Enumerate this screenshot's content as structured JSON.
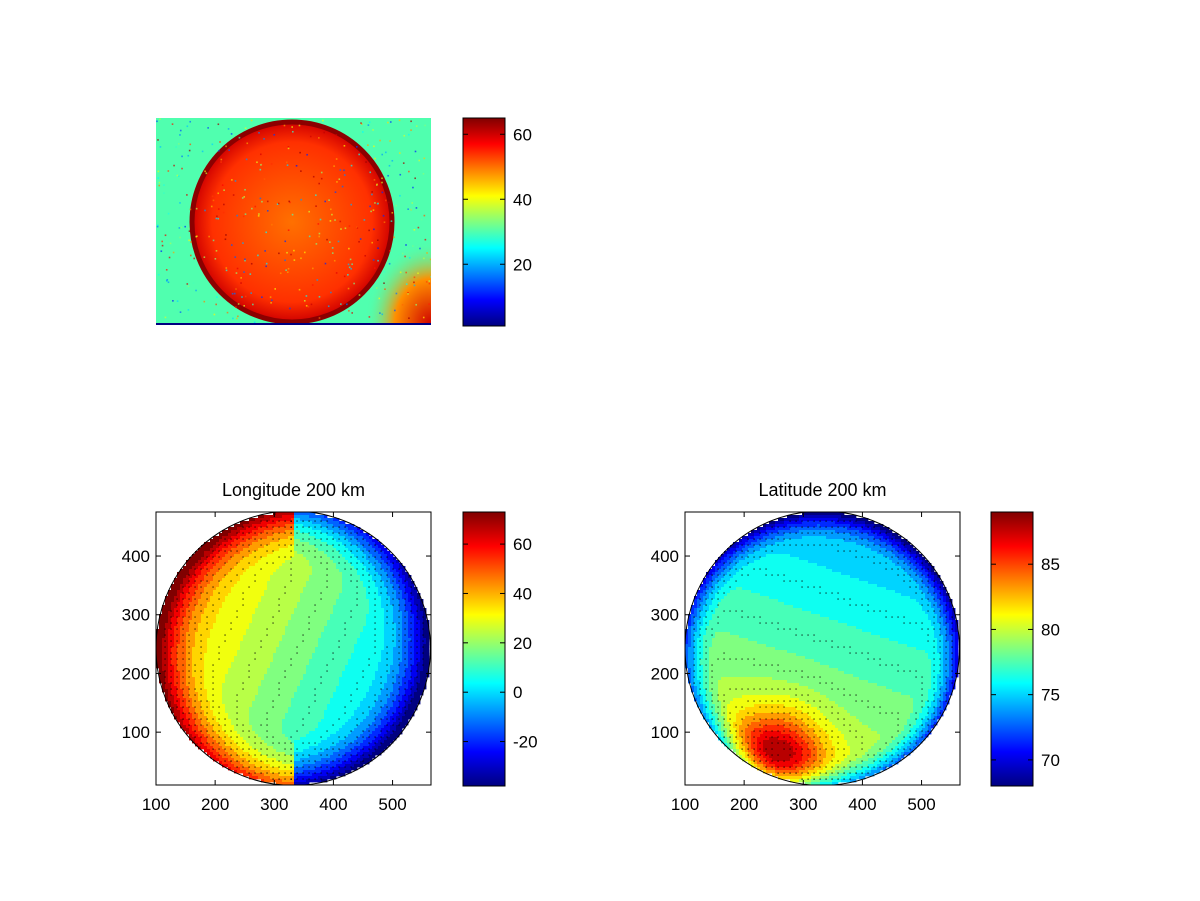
{
  "figure": {
    "background": "#ffffff",
    "colormap": "jet"
  },
  "chart_data": [
    {
      "type": "heatmap",
      "name": "raw-image",
      "title": "",
      "xlabel": "",
      "ylabel": "",
      "axes_ticks": false,
      "image_stamp": "",
      "colorbar": {
        "range": [
          1,
          65
        ],
        "ticks": [
          20,
          40,
          60
        ]
      },
      "content": {
        "background_value": 30,
        "disk_value": 50,
        "disk_rim_value": 60,
        "corner_glow_value": 48
      }
    },
    {
      "type": "heatmap",
      "name": "longitude",
      "title": "Longitude 200 km",
      "xlabel": "",
      "ylabel": "",
      "xlim": [
        100,
        565
      ],
      "ylim": [
        10,
        475
      ],
      "xticks": [
        100,
        200,
        300,
        400,
        500
      ],
      "yticks": [
        100,
        200,
        300,
        400
      ],
      "colorbar": {
        "range": [
          -38,
          73
        ],
        "ticks": [
          -20,
          0,
          20,
          40,
          60
        ]
      },
      "disk": {
        "center": [
          332,
          243
        ],
        "radius": 232
      },
      "contours": "filled with black contour lines",
      "grid": false
    },
    {
      "type": "heatmap",
      "name": "latitude",
      "title": "Latitude 200 km",
      "xlabel": "",
      "ylabel": "",
      "xlim": [
        100,
        565
      ],
      "ylim": [
        10,
        475
      ],
      "xticks": [
        100,
        200,
        300,
        400,
        500
      ],
      "yticks": [
        100,
        200,
        300,
        400
      ],
      "colorbar": {
        "range": [
          68,
          89
        ],
        "ticks": [
          70,
          75,
          80,
          85
        ]
      },
      "disk": {
        "center": [
          332,
          243
        ],
        "radius": 232
      },
      "contours": "filled with black contour lines",
      "grid": false
    }
  ]
}
